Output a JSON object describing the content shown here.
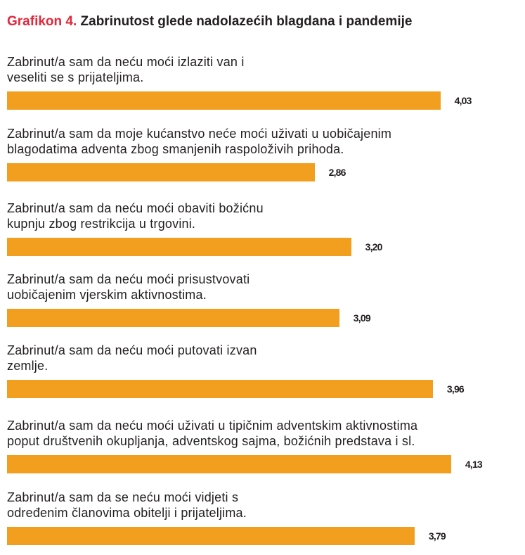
{
  "chart_data": {
    "type": "bar",
    "orientation": "horizontal",
    "title_prefix": "Grafikon 4.",
    "title": "Zabrinutost glede nadolazećih blagdana i pandemije",
    "categories": [
      "Zabrinut/a sam da neću moći izlaziti van i\nveseliti se s prijateljima.",
      "Zabrinut/a sam da moje kućanstvo neće moći uživati u uobičajenim\nblagodatima adventa zbog smanjenih raspoloživih prihoda.",
      "Zabrinut/a sam da neću moći obaviti božićnu\nkupnju zbog restrikcija u trgovini.",
      "Zabrinut/a sam da neću moći prisustvovati\nuobičajenim vjerskim aktivnostima.",
      "Zabrinut/a sam da neću moći putovati izvan\nzemlje.",
      "Zabrinut/a sam da neću moći uživati u tipičnim adventskim aktivnostima\npoput društvenih okupljanja, adventskog sajma, božićnih predstava i sl.",
      "Zabrinut/a sam da se neću moći vidjeti s\nodređenim članovima obitelji i prijateljima."
    ],
    "values": [
      4.03,
      2.86,
      3.2,
      3.09,
      3.96,
      4.13,
      3.79
    ],
    "value_labels": [
      "4,03",
      "2,86",
      "3,20",
      "3,09",
      "3,96",
      "4,13",
      "3,79"
    ],
    "xlim": [
      0,
      4.6
    ],
    "grid": false,
    "bar_color": "#f29f1f",
    "title_prefix_color": "#e2283b"
  }
}
